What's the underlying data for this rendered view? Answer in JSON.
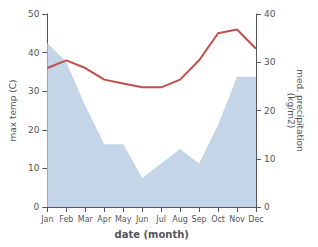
{
  "chart_data": {
    "type": "line",
    "xlabel": "date (month)",
    "ylabel": "max temp (C)",
    "y2label": "med. precipitation\n(kg/m2)",
    "categories": [
      "Jan",
      "Feb",
      "Mar",
      "Apr",
      "May",
      "Jun",
      "Jul",
      "Aug",
      "Sep",
      "Oct",
      "Nov",
      "Dec"
    ],
    "series": [
      {
        "type": "area",
        "axis": "y2",
        "color": "#c5d5e8",
        "values": [
          34,
          30,
          21,
          13,
          13,
          6,
          9,
          12,
          9,
          17,
          27,
          27
        ]
      },
      {
        "type": "line",
        "color": "#c0504d",
        "values": [
          36,
          38,
          36,
          33,
          32,
          31,
          31,
          33,
          38,
          45,
          46,
          41
        ]
      }
    ],
    "ylim": [
      0,
      50
    ],
    "yticks": [
      0,
      10,
      20,
      30,
      40,
      50
    ],
    "y2lim": [
      0,
      40
    ],
    "y2ticks": [
      0,
      10,
      20,
      30,
      40
    ],
    "grid": false
  }
}
